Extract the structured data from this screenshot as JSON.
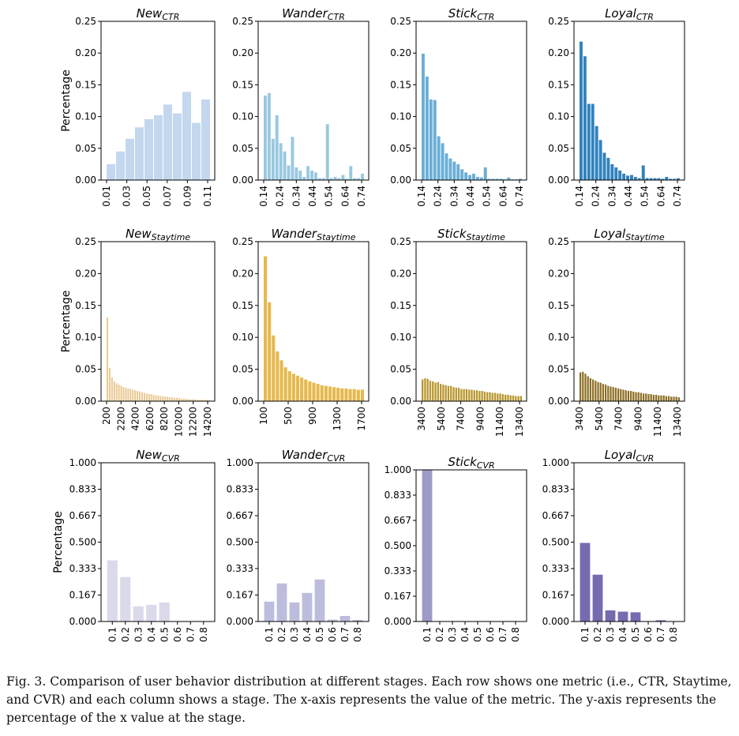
{
  "caption": "Fig. 3.  Comparison of user behavior distribution at different stages. Each row shows one metric (i.e., CTR, Staytime, and CVR) and each column shows a stage. The x-axis represents the value of the metric. The y-axis represents the percentage of the x value at the stage.",
  "chart_data": [
    {
      "type": "bar",
      "title": "New",
      "title_sub": "CTR",
      "ylabel": "Percentage",
      "color": "#c3d7ee",
      "ylim": [
        0,
        0.25
      ],
      "yticks": [
        "0.00",
        "0.05",
        "0.10",
        "0.15",
        "0.20",
        "0.25"
      ],
      "xticks": [
        "0.01",
        "0.03",
        "0.05",
        "0.07",
        "0.09",
        "0.11"
      ],
      "values": [
        0.025,
        0.045,
        0.065,
        0.083,
        0.096,
        0.102,
        0.119,
        0.105,
        0.139,
        0.09,
        0.127
      ]
    },
    {
      "type": "bar",
      "title": "Wander",
      "title_sub": "CTR",
      "ylabel": "",
      "color": "#9ac8e0",
      "ylim": [
        0,
        0.25
      ],
      "yticks": [
        "0.00",
        "0.05",
        "0.10",
        "0.15",
        "0.20",
        "0.25"
      ],
      "xticks": [
        "0.14",
        "0.24",
        "0.34",
        "0.44",
        "0.54",
        "0.64",
        "0.74"
      ],
      "values": [
        0.133,
        0.137,
        0.065,
        0.102,
        0.058,
        0.045,
        0.023,
        0.068,
        0.02,
        0.015,
        0.005,
        0.022,
        0.015,
        0.012,
        0.003,
        0.003,
        0.088,
        0.003,
        0.005,
        0.003,
        0.008,
        0.002,
        0.022,
        0.003,
        0.003,
        0.01
      ]
    },
    {
      "type": "bar",
      "title": "Stick",
      "title_sub": "CTR",
      "ylabel": "",
      "color": "#6aaed6",
      "ylim": [
        0,
        0.25
      ],
      "yticks": [
        "0.00",
        "0.05",
        "0.10",
        "0.15",
        "0.20",
        "0.25"
      ],
      "xticks": [
        "0.14",
        "0.24",
        "0.34",
        "0.44",
        "0.54",
        "0.64",
        "0.74"
      ],
      "values": [
        0.199,
        0.163,
        0.127,
        0.126,
        0.069,
        0.058,
        0.042,
        0.034,
        0.029,
        0.025,
        0.017,
        0.012,
        0.008,
        0.01,
        0.005,
        0.004,
        0.02,
        0.002,
        0.002,
        0.002,
        0.002,
        0.001,
        0.004,
        0.001,
        0.001,
        0.002
      ]
    },
    {
      "type": "bar",
      "title": "Loyal",
      "title_sub": "CTR",
      "ylabel": "",
      "color": "#3182bd",
      "ylim": [
        0,
        0.25
      ],
      "yticks": [
        "0.00",
        "0.05",
        "0.10",
        "0.15",
        "0.20",
        "0.25"
      ],
      "xticks": [
        "0.14",
        "0.24",
        "0.34",
        "0.44",
        "0.54",
        "0.64",
        "0.74"
      ],
      "values": [
        0.218,
        0.195,
        0.12,
        0.12,
        0.085,
        0.063,
        0.043,
        0.035,
        0.025,
        0.02,
        0.015,
        0.01,
        0.007,
        0.008,
        0.005,
        0.003,
        0.023,
        0.003,
        0.003,
        0.003,
        0.003,
        0.002,
        0.005,
        0.002,
        0.002,
        0.003
      ]
    },
    {
      "type": "bar",
      "title": "New",
      "title_sub": "Staytime",
      "ylabel": "Percentage",
      "color": "#e8c88f",
      "ylim": [
        0,
        0.25
      ],
      "yticks": [
        "0.00",
        "0.05",
        "0.10",
        "0.15",
        "0.20",
        "0.25"
      ],
      "xticks": [
        "200",
        "2200",
        "4200",
        "6200",
        "8200",
        "10200",
        "12200",
        "14200"
      ],
      "values": [
        0.131,
        0.052,
        0.037,
        0.031,
        0.028,
        0.026,
        0.024,
        0.022,
        0.021,
        0.02,
        0.019,
        0.018,
        0.017,
        0.016,
        0.015,
        0.014,
        0.013,
        0.012,
        0.011,
        0.011,
        0.01,
        0.009,
        0.009,
        0.008,
        0.008,
        0.007,
        0.007,
        0.006,
        0.006,
        0.005,
        0.005,
        0.005,
        0.004,
        0.004,
        0.004,
        0.003,
        0.003,
        0.003,
        0.003,
        0.002,
        0.002,
        0.002,
        0.002,
        0.002,
        0.002
      ]
    },
    {
      "type": "bar",
      "title": "Wander",
      "title_sub": "Staytime",
      "ylabel": "",
      "color": "#e6b94e",
      "ylim": [
        0,
        0.25
      ],
      "yticks": [
        "0.00",
        "0.05",
        "0.10",
        "0.15",
        "0.20",
        "0.25"
      ],
      "xticks": [
        "100",
        "500",
        "900",
        "1300",
        "1700"
      ],
      "values": [
        0.227,
        0.155,
        0.103,
        0.078,
        0.064,
        0.053,
        0.047,
        0.043,
        0.04,
        0.037,
        0.034,
        0.031,
        0.029,
        0.027,
        0.025,
        0.024,
        0.023,
        0.022,
        0.021,
        0.02,
        0.02,
        0.019,
        0.019,
        0.018,
        0.018
      ]
    },
    {
      "type": "bar",
      "title": "Stick",
      "title_sub": "Staytime",
      "ylabel": "",
      "color": "#b8962e",
      "ylim": [
        0,
        0.25
      ],
      "yticks": [
        "0.00",
        "0.05",
        "0.10",
        "0.15",
        "0.20",
        "0.25"
      ],
      "xticks": [
        "3400",
        "5400",
        "7400",
        "9400",
        "11400",
        "13400"
      ],
      "values": [
        0.034,
        0.036,
        0.035,
        0.032,
        0.031,
        0.029,
        0.03,
        0.027,
        0.026,
        0.025,
        0.024,
        0.024,
        0.022,
        0.021,
        0.021,
        0.019,
        0.019,
        0.019,
        0.018,
        0.018,
        0.017,
        0.017,
        0.016,
        0.016,
        0.015,
        0.014,
        0.014,
        0.013,
        0.013,
        0.012,
        0.012,
        0.011,
        0.01,
        0.01,
        0.009,
        0.009,
        0.008,
        0.008,
        0.008
      ]
    },
    {
      "type": "bar",
      "title": "Loyal",
      "title_sub": "Staytime",
      "ylabel": "",
      "color": "#8c6d23",
      "ylim": [
        0,
        0.25
      ],
      "yticks": [
        "0.00",
        "0.05",
        "0.10",
        "0.15",
        "0.20",
        "0.25"
      ],
      "xticks": [
        "3400",
        "5400",
        "7400",
        "9400",
        "11400",
        "13400"
      ],
      "values": [
        0.045,
        0.046,
        0.043,
        0.039,
        0.036,
        0.034,
        0.032,
        0.03,
        0.029,
        0.027,
        0.026,
        0.024,
        0.023,
        0.022,
        0.021,
        0.02,
        0.019,
        0.018,
        0.017,
        0.016,
        0.016,
        0.015,
        0.014,
        0.014,
        0.013,
        0.012,
        0.012,
        0.011,
        0.011,
        0.01,
        0.01,
        0.009,
        0.009,
        0.009,
        0.008,
        0.008,
        0.007,
        0.007,
        0.007,
        0.006
      ]
    },
    {
      "type": "bar",
      "title": "New",
      "title_sub": "CVR",
      "ylabel": "Percentage",
      "color": "#dadaeb",
      "ylim": [
        0,
        1.0
      ],
      "yticks": [
        "0.000",
        "0.167",
        "0.333",
        "0.500",
        "0.667",
        "0.833",
        "1.000"
      ],
      "xticks": [
        "0.1",
        "0.2",
        "0.3",
        "0.4",
        "0.5",
        "0.6",
        "0.7",
        "0.8"
      ],
      "values": [
        0.385,
        0.28,
        0.095,
        0.105,
        0.12,
        0.002,
        0.002,
        0.002
      ]
    },
    {
      "type": "bar",
      "title": "Wander",
      "title_sub": "CVR",
      "ylabel": "",
      "color": "#bcbddc",
      "ylim": [
        0,
        1.0
      ],
      "yticks": [
        "0.000",
        "0.167",
        "0.333",
        "0.500",
        "0.667",
        "0.833",
        "1.000"
      ],
      "xticks": [
        "0.1",
        "0.2",
        "0.3",
        "0.4",
        "0.5",
        "0.6",
        "0.7",
        "0.8"
      ],
      "values": [
        0.125,
        0.24,
        0.12,
        0.18,
        0.265,
        0.012,
        0.035,
        0.01
      ]
    },
    {
      "type": "bar",
      "title": "Stick",
      "title_sub": "CVR",
      "ylabel": "",
      "color": "#9e9ac8",
      "ylim": [
        0,
        1.0
      ],
      "yticks": [
        "0.000",
        "0.167",
        "0.333",
        "0.500",
        "0.667",
        "0.833",
        "1.000"
      ],
      "xticks": [
        "0.1",
        "0.2",
        "0.3",
        "0.4",
        "0.5",
        "0.6",
        "0.7",
        "0.8"
      ],
      "values": [
        1.0,
        0,
        0,
        0,
        0,
        0,
        0,
        0
      ]
    },
    {
      "type": "bar",
      "title": "Loyal",
      "title_sub": "CVR",
      "ylabel": "",
      "color": "#756bb1",
      "ylim": [
        0,
        1.0
      ],
      "yticks": [
        "0.000",
        "0.167",
        "0.333",
        "0.500",
        "0.667",
        "0.833",
        "1.000"
      ],
      "xticks": [
        "0.1",
        "0.2",
        "0.3",
        "0.4",
        "0.5",
        "0.6",
        "0.7",
        "0.8"
      ],
      "values": [
        0.495,
        0.295,
        0.07,
        0.062,
        0.058,
        0.002,
        0.008,
        0.002
      ]
    }
  ]
}
